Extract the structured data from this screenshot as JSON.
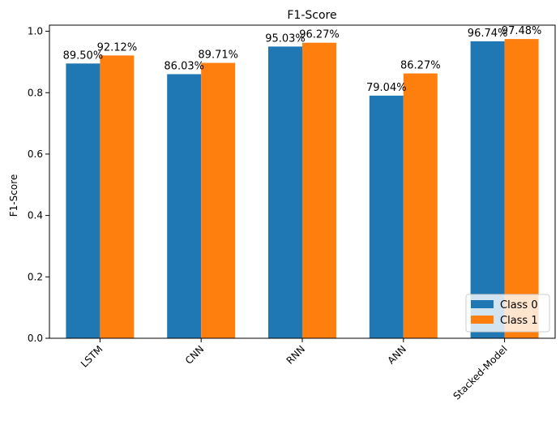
{
  "chart_data": {
    "type": "bar",
    "title": "F1-Score",
    "xlabel": "",
    "ylabel": "F1-Score",
    "ylim": [
      0,
      1.02
    ],
    "yticks": [
      0.0,
      0.2,
      0.4,
      0.6,
      0.8,
      1.0
    ],
    "ytick_labels": [
      "0.0",
      "0.2",
      "0.4",
      "0.6",
      "0.8",
      "1.0"
    ],
    "categories": [
      "LSTM",
      "CNN",
      "RNN",
      "ANN",
      "Stacked-Model"
    ],
    "series": [
      {
        "name": "Class 0",
        "color": "#1f77b4",
        "values": [
          0.895,
          0.8603,
          0.9503,
          0.7904,
          0.9674
        ],
        "labels": [
          "89.50%",
          "86.03%",
          "95.03%",
          "79.04%",
          "96.74%"
        ]
      },
      {
        "name": "Class 1",
        "color": "#ff7f0e",
        "values": [
          0.9212,
          0.8971,
          0.9627,
          0.8627,
          0.9748
        ],
        "labels": [
          "92.12%",
          "89.71%",
          "96.27%",
          "86.27%",
          "97.48%"
        ]
      }
    ],
    "grid": false,
    "legend": "lower right"
  }
}
